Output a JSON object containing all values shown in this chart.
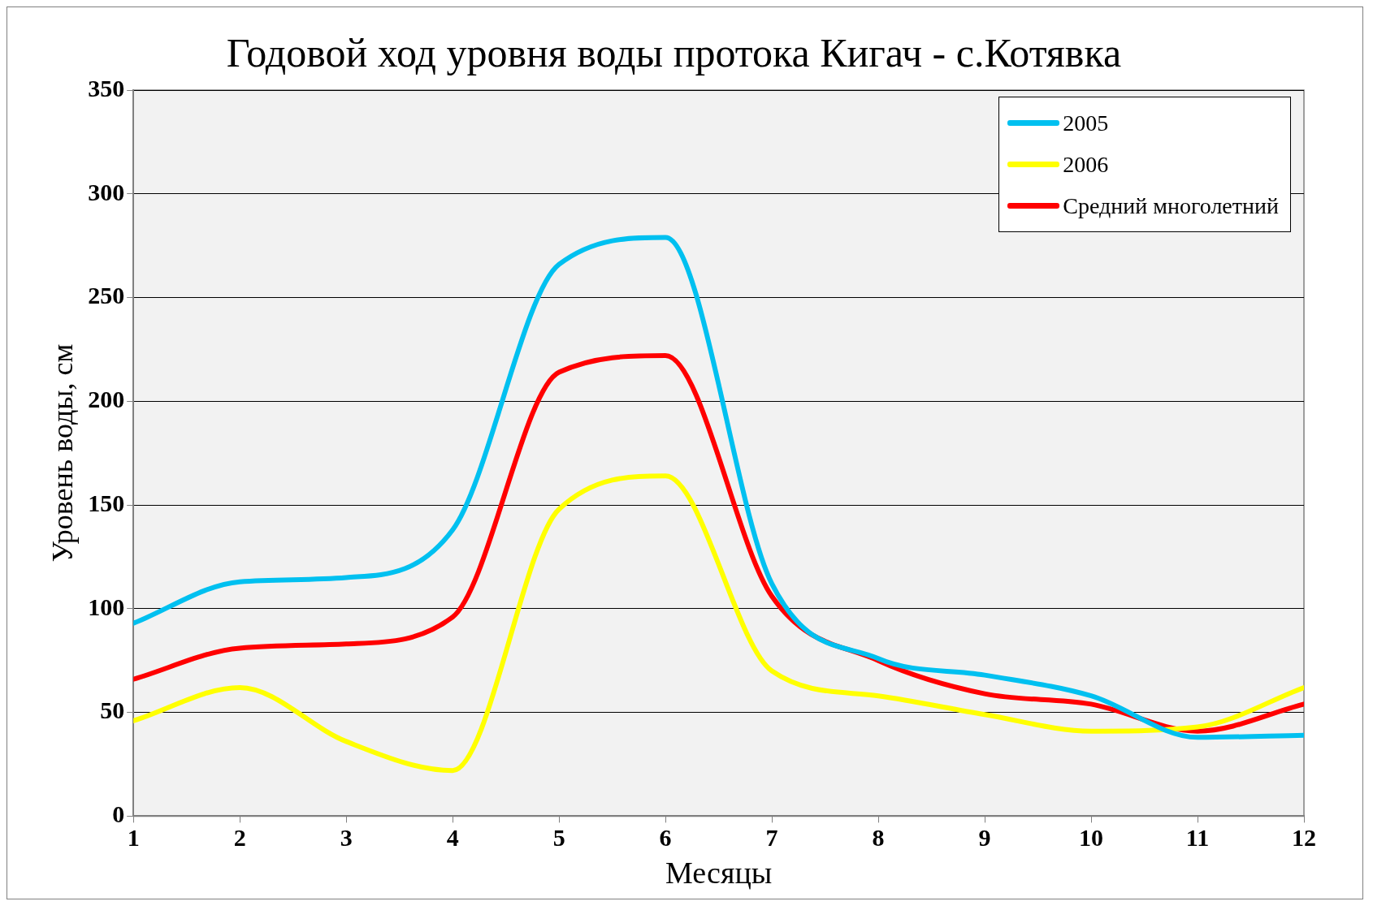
{
  "chart_data": {
    "type": "line",
    "title": "Годовой ход уровня воды протока Кигач - с.Котявка",
    "xlabel": "Месяцы",
    "ylabel": "Уровень воды, см",
    "x": [
      1,
      2,
      3,
      4,
      5,
      6,
      7,
      8,
      9,
      10,
      11,
      12
    ],
    "series": [
      {
        "name": "2005",
        "color": "#00c0f0",
        "values": [
          93,
          113,
          115,
          138,
          266,
          279,
          112,
          76,
          68,
          58,
          38,
          39
        ]
      },
      {
        "name": "2006",
        "color": "#ffff00",
        "values": [
          46,
          62,
          36,
          22,
          148,
          164,
          70,
          58,
          49,
          41,
          43,
          62
        ]
      },
      {
        "name": "Средний многолетний",
        "color": "#ff0000",
        "values": [
          66,
          81,
          83,
          96,
          214,
          222,
          106,
          75,
          59,
          54,
          41,
          54
        ]
      }
    ],
    "xlim": [
      1,
      12
    ],
    "xticks": [
      1,
      2,
      3,
      4,
      5,
      6,
      7,
      8,
      9,
      10,
      11,
      12
    ],
    "ylim": [
      0,
      350
    ],
    "yticks": [
      0,
      50,
      100,
      150,
      200,
      250,
      300,
      350
    ],
    "grid": "y",
    "legend": "top right",
    "marker": "none",
    "line_style": "solid"
  }
}
